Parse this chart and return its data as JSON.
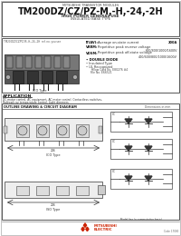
{
  "title_small": "MITSUBISHI TRANSISTOR MODULES",
  "title_large": "TM200DZ/CZ/PZ-M,-H,-24,-2H",
  "subtitle1": "HIGH POWER GENERAL USE",
  "subtitle2": "INSULATED BASE TYPE",
  "features_ref": "TM200DZ/CZ/PZ-M,-H,-24,-2H  ref. no. you see",
  "it_av_label": "IT(AV):",
  "it_av_desc": "Average on-state current",
  "it_av_value": "200A",
  "vrrm_label": "VRRM:",
  "vrrm_desc": "Repetitive peak reverse voltage",
  "vrrm_values": "600/800/1000/1600V",
  "vdsm_label": "VDSM:",
  "vdsm_desc": "Repetitive peak off-state voltage",
  "vdsm_values": "400/600/800/1000/1600V",
  "bullet1": "DOUBLE DIODE",
  "bullet2": "Insulated Type",
  "bullet3": "UL Recognized",
  "ul_file": "Yellow Card No. E80276 #4",
  "ul_file2": "File No. E66521",
  "app_title": "APPLICATION",
  "app_text1": "DC motor control, AC equipment, AC motor control, Contactless switches,",
  "app_text2": "Railroad car temperature control, Light dimmers",
  "outline_title": "OUTLINE DRAWING & CIRCUIT DIAGRAM",
  "outline_note": "Dimensions in mm",
  "ico_type": "ICO Type",
  "iso_type": "ISO Type",
  "model_line": "Model line (a commutative basis)",
  "footer_code": "Code 17000",
  "mitsubishi_label": "MITSUBISHI\nELECTRIC",
  "cc1": "CC",
  "cc2": "CC",
  "cc3": "CC"
}
